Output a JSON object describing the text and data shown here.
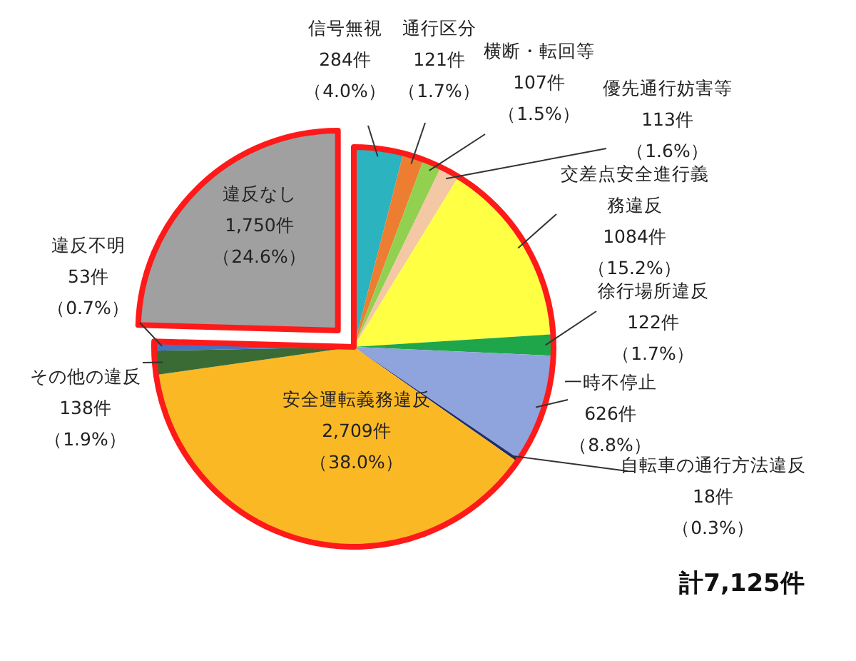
{
  "chart_data": {
    "type": "pie",
    "categories": [
      "信号無視",
      "通行区分",
      "横断・転回等",
      "優先通行妨害等",
      "交差点安全進行義務違反",
      "徐行場所違反",
      "一時不停止",
      "自転車の通行方法違反",
      "安全運転義務違反",
      "その他の違反",
      "違反不明",
      "違反なし"
    ],
    "values": [
      284,
      121,
      107,
      113,
      1084,
      122,
      626,
      18,
      2709,
      138,
      53,
      1750
    ],
    "value_labels": [
      "284件（4.0%）",
      "121件（1.7%）",
      "107件（1.5%）",
      "113件（1.6%）",
      "1084件（15.2%）",
      "122件（1.7%）",
      "626件（8.8%）",
      "18件（0.3%）",
      "2,709件（38.0%）",
      "138件（1.9%）",
      "53件（0.7%）",
      "1,750件（24.6%）"
    ],
    "colors": [
      "#2bb3c0",
      "#ed7d31",
      "#92d050",
      "#f4c7a5",
      "#ffff44",
      "#1fa64a",
      "#8fa3dc",
      "#1f2d6b",
      "#fbb825",
      "#3a6b35",
      "#4472c4",
      "#a0a0a0"
    ],
    "annotations": [
      "計7,125件"
    ]
  }
}
